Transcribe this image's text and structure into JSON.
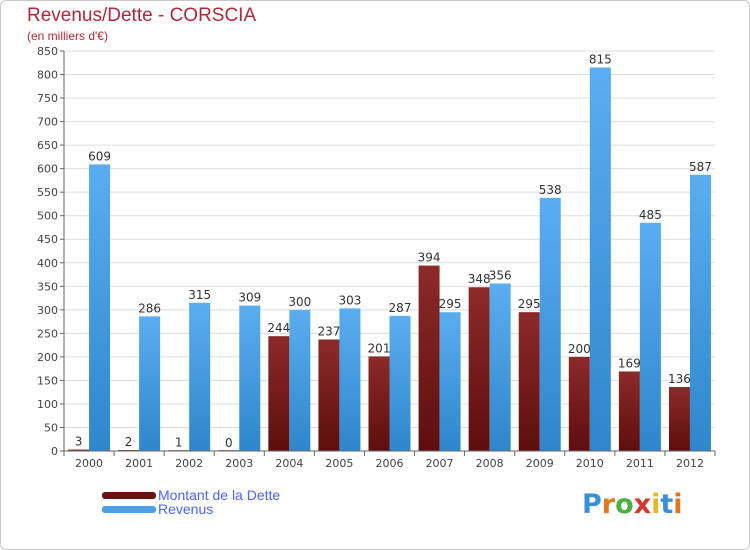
{
  "header": {
    "title": "Revenus/Dette - CORSCIA",
    "subtitle": "(en milliers d'€)"
  },
  "chart_data": {
    "type": "bar",
    "categories": [
      "2000",
      "2001",
      "2002",
      "2003",
      "2004",
      "2005",
      "2006",
      "2007",
      "2008",
      "2009",
      "2010",
      "2011",
      "2012"
    ],
    "series": [
      {
        "name": "Montant de la Dette",
        "values": [
          3,
          2,
          1,
          0,
          244,
          237,
          201,
          394,
          348,
          295,
          200,
          169,
          136
        ],
        "color": "#7a1a1a"
      },
      {
        "name": "Revenus",
        "values": [
          609,
          286,
          315,
          309,
          300,
          303,
          287,
          295,
          356,
          538,
          815,
          485,
          587
        ],
        "color": "#4aa0e6"
      }
    ],
    "ylim": [
      0,
      850
    ],
    "yticks": [
      0,
      50,
      100,
      150,
      200,
      250,
      300,
      350,
      400,
      450,
      500,
      550,
      600,
      650,
      700,
      750,
      800,
      850
    ],
    "grid": true,
    "legend_position": "bottom-left"
  },
  "logo": {
    "letters": [
      "P",
      "r",
      "o",
      "x",
      "i",
      "t",
      "i"
    ],
    "colors": [
      "#3a8fd8",
      "#e07820",
      "#4ab040",
      "#d8362a",
      "#e8b820",
      "#3a8fd8",
      "#e07820"
    ]
  }
}
